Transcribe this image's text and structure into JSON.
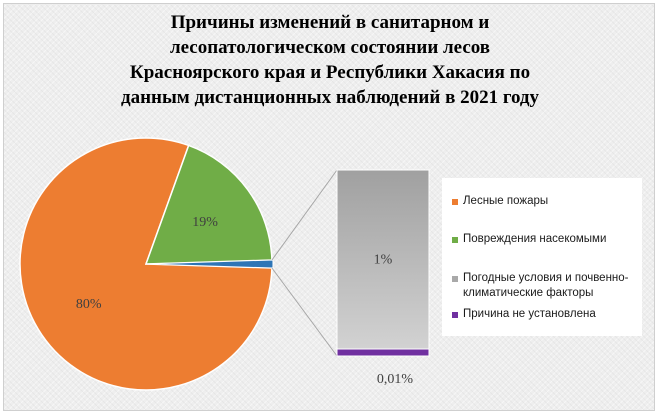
{
  "title_lines": [
    "Причины изменений в санитарном и",
    "лесопатологическом состоянии лесов",
    "Красноярского края и Республики Хакасия по",
    "данным дистанционных наблюдений в 2021 году"
  ],
  "chart_data": {
    "type": "pie",
    "subtype": "pie-of-bar",
    "title": "Причины изменений в санитарном и лесопатологическом состоянии лесов Красноярского края и Республики Хакасия по данным дистанционных наблюдений в 2021 году",
    "slices": [
      {
        "name": "Лесные пожары",
        "value": 80,
        "label": "80%",
        "color": "#ed7d31"
      },
      {
        "name": "Повреждения насекомыми",
        "value": 19,
        "label": "19%",
        "color": "#70ad47"
      },
      {
        "name": "Погодные условия и почвенно-климатические факторы",
        "value": 1,
        "label": "1%",
        "color": "#a9a9a9",
        "in_breakout": true
      },
      {
        "name": "Причина не установлена",
        "value": 0.01,
        "label": "0,01%",
        "color": "#7030a0",
        "in_breakout": true
      }
    ],
    "legend_position": "right"
  },
  "legend": [
    {
      "label": "Лесные пожары",
      "color": "#ed7d31"
    },
    {
      "label": "Повреждения насекомыми",
      "color": "#70ad47"
    },
    {
      "label": "Погодные условия и почвенно-климатические факторы",
      "color": "#a9a9a9"
    },
    {
      "label": "Причина не установлена",
      "color": "#7030a0"
    }
  ]
}
